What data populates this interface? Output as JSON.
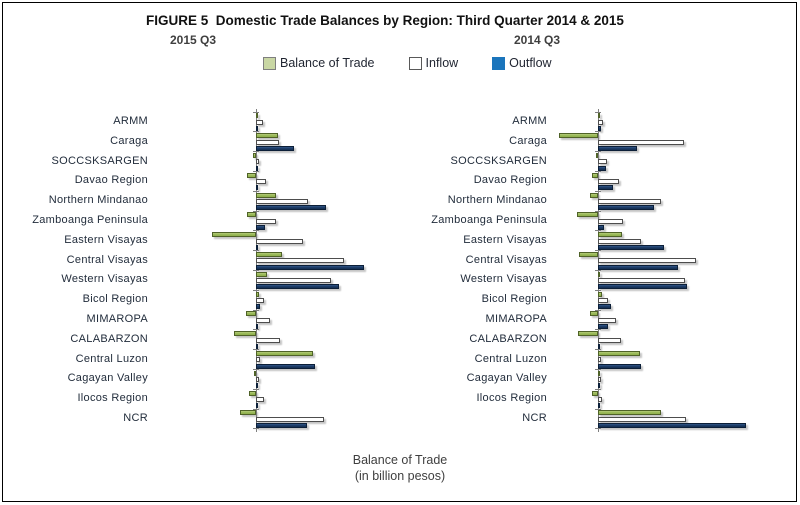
{
  "figure": {
    "title": "FIGURE 5  Domestic Trade Balances by Region: Third Quarter 2014 & 2015",
    "caption_line1": "Balance of Trade",
    "caption_line2": "(in billion pesos)"
  },
  "legend": [
    {
      "label": "Balance of Trade",
      "swatch_color": "#c9d7a4",
      "swatch_border": "#7f7f7f"
    },
    {
      "label": "Inflow",
      "swatch_color": "#ffffff",
      "swatch_border": "#595959"
    },
    {
      "label": "Outflow",
      "swatch_color": "#1b75bc",
      "swatch_border": "#1b75bc"
    }
  ],
  "colors": {
    "balance_bar": "#9bbb59",
    "balance_border": "#4f6228",
    "inflow_bar": "#ffffff",
    "inflow_border": "#4d4d4d",
    "outflow_bar": "#17375e",
    "outflow_border": "#0c1f38",
    "axis": "#7f7f7f",
    "title_text": "#111111",
    "subtitle_text": "#3f3f3f",
    "label_text": "#1f2a39"
  },
  "chart_data": [
    {
      "type": "bar",
      "orientation": "horizontal",
      "title": "2015 Q3",
      "unit": "billion pesos",
      "axis_note": "no numeric tick labels shown; values estimated from bar lengths",
      "xlim": [
        -22,
        32
      ],
      "categories": [
        "ARMM",
        "Caraga",
        "SOCCSKSARGEN",
        "Davao Region",
        "Northern Mindanao",
        "Zamboanga Peninsula",
        "Eastern Visayas",
        "Central Visayas",
        "Western Visayas",
        "Bicol Region",
        "MIMAROPA",
        "CALABARZON",
        "Central Luzon",
        "Cagayan Valley",
        "Ilocos Region",
        "NCR"
      ],
      "series": [
        {
          "name": "Balance of Trade",
          "values": [
            0.4,
            4.4,
            -0.6,
            -1.8,
            4.0,
            -1.8,
            -8.8,
            5.2,
            2.2,
            0.6,
            -2.0,
            -4.4,
            11.4,
            -0.2,
            -1.4,
            -3.2
          ]
        },
        {
          "name": "Inflow",
          "values": [
            1.4,
            4.6,
            0.6,
            2.0,
            10.4,
            4.0,
            9.4,
            17.6,
            15.0,
            1.6,
            2.8,
            4.8,
            0.8,
            0.6,
            1.6,
            13.6
          ]
        },
        {
          "name": "Outflow",
          "values": [
            0.2,
            7.6,
            0.4,
            0.4,
            14.0,
            1.8,
            0.4,
            21.6,
            16.6,
            0.8,
            0.4,
            0.4,
            11.8,
            0.2,
            0.4,
            10.2
          ]
        }
      ]
    },
    {
      "type": "bar",
      "orientation": "horizontal",
      "title": "2014 Q3",
      "unit": "billion pesos",
      "axis_note": "no numeric tick labels shown; values estimated from bar lengths",
      "xlim": [
        -10,
        32
      ],
      "categories": [
        "ARMM",
        "Caraga",
        "SOCCSKSARGEN",
        "Davao Region",
        "Northern Mindanao",
        "Zamboanga Peninsula",
        "Eastern Visayas",
        "Central Visayas",
        "Western Visayas",
        "Bicol Region",
        "MIMAROPA",
        "CALABARZON",
        "Central Luzon",
        "Cagayan Valley",
        "Ilocos Region",
        "NCR"
      ],
      "series": [
        {
          "name": "Balance of Trade",
          "values": [
            0.4,
            -7.8,
            -0.2,
            -1.2,
            -1.6,
            -4.2,
            4.8,
            -3.8,
            0.4,
            0.8,
            -1.6,
            -4.0,
            8.4,
            0.2,
            -1.2,
            12.6
          ]
        },
        {
          "name": "Inflow",
          "values": [
            1.0,
            17.2,
            1.8,
            4.2,
            12.6,
            5.0,
            8.6,
            19.6,
            17.4,
            2.0,
            3.6,
            4.6,
            0.6,
            0.6,
            0.8,
            17.6
          ]
        },
        {
          "name": "Outflow",
          "values": [
            0.6,
            7.8,
            1.6,
            3.0,
            11.2,
            1.2,
            13.2,
            16.0,
            17.8,
            2.6,
            2.0,
            0.4,
            8.6,
            0.2,
            0.2,
            29.6
          ]
        }
      ]
    }
  ]
}
